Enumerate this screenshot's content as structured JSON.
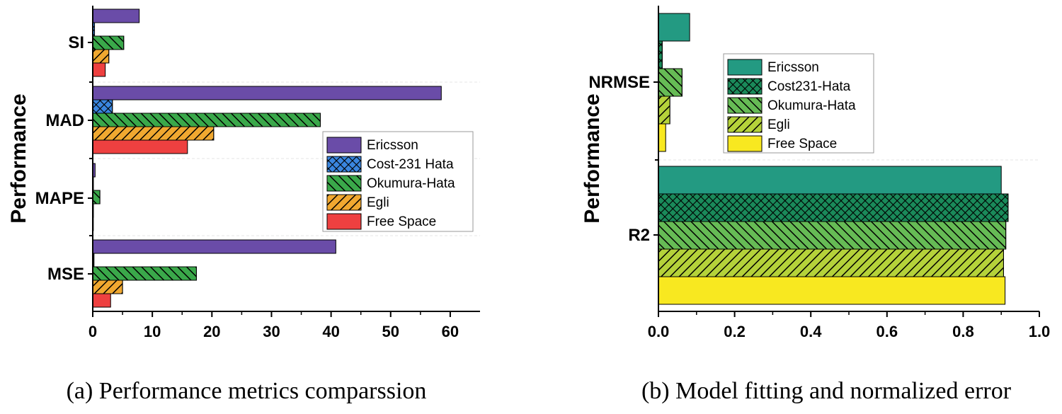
{
  "chart_data": [
    {
      "type": "bar",
      "orientation": "horizontal",
      "title": "",
      "caption": "(a) Performance metrics comparssion",
      "xlabel": "",
      "ylabel": "Performance",
      "xlim": [
        0,
        65
      ],
      "xticks": [
        "0",
        "10",
        "20",
        "30",
        "40",
        "50",
        "60"
      ],
      "categories": [
        "SI",
        "MAD",
        "MAPE",
        "MSE"
      ],
      "legend_position": "center-right",
      "series": [
        {
          "name": "Ericsson",
          "color": "#6a4ca8",
          "pattern": "solid",
          "values": [
            7.8,
            58.5,
            0.4,
            40.8
          ]
        },
        {
          "name": "Cost-231 Hata",
          "color": "#3a86e0",
          "pattern": "crosshatch",
          "values": [
            0.3,
            3.3,
            0.1,
            0.2
          ]
        },
        {
          "name": "Okumura-Hata",
          "color": "#3aa84a",
          "pattern": "backslash",
          "values": [
            5.2,
            38.2,
            1.2,
            17.4
          ]
        },
        {
          "name": "Egli",
          "color": "#f0a830",
          "pattern": "slash",
          "values": [
            2.7,
            20.3,
            0.1,
            5.0
          ]
        },
        {
          "name": "Free Space",
          "color": "#ee4040",
          "pattern": "solid",
          "values": [
            2.1,
            15.9,
            0.1,
            3.0
          ]
        }
      ]
    },
    {
      "type": "bar",
      "orientation": "horizontal",
      "title": "",
      "caption": "(b) Model fitting and normalized error",
      "xlabel": "",
      "ylabel": "Performance",
      "xlim": [
        0,
        1.0
      ],
      "xticks": [
        "0.0",
        "0.2",
        "0.4",
        "0.6",
        "0.8",
        "1.0"
      ],
      "categories": [
        "NRMSE",
        "R2"
      ],
      "legend_position": "top-center",
      "series": [
        {
          "name": "Ericsson",
          "color": "#239a82",
          "pattern": "solid",
          "values": [
            0.082,
            0.9
          ]
        },
        {
          "name": "Cost231-Hata",
          "color": "#1a8a5a",
          "pattern": "crosshatch",
          "values": [
            0.01,
            0.918
          ]
        },
        {
          "name": "Okumura-Hata",
          "color": "#66bb55",
          "pattern": "backslash",
          "values": [
            0.062,
            0.912
          ]
        },
        {
          "name": "Egli",
          "color": "#b5d23a",
          "pattern": "slash",
          "values": [
            0.03,
            0.906
          ]
        },
        {
          "name": "Free Space",
          "color": "#f8e820",
          "pattern": "solid",
          "values": [
            0.019,
            0.91
          ]
        }
      ]
    }
  ]
}
